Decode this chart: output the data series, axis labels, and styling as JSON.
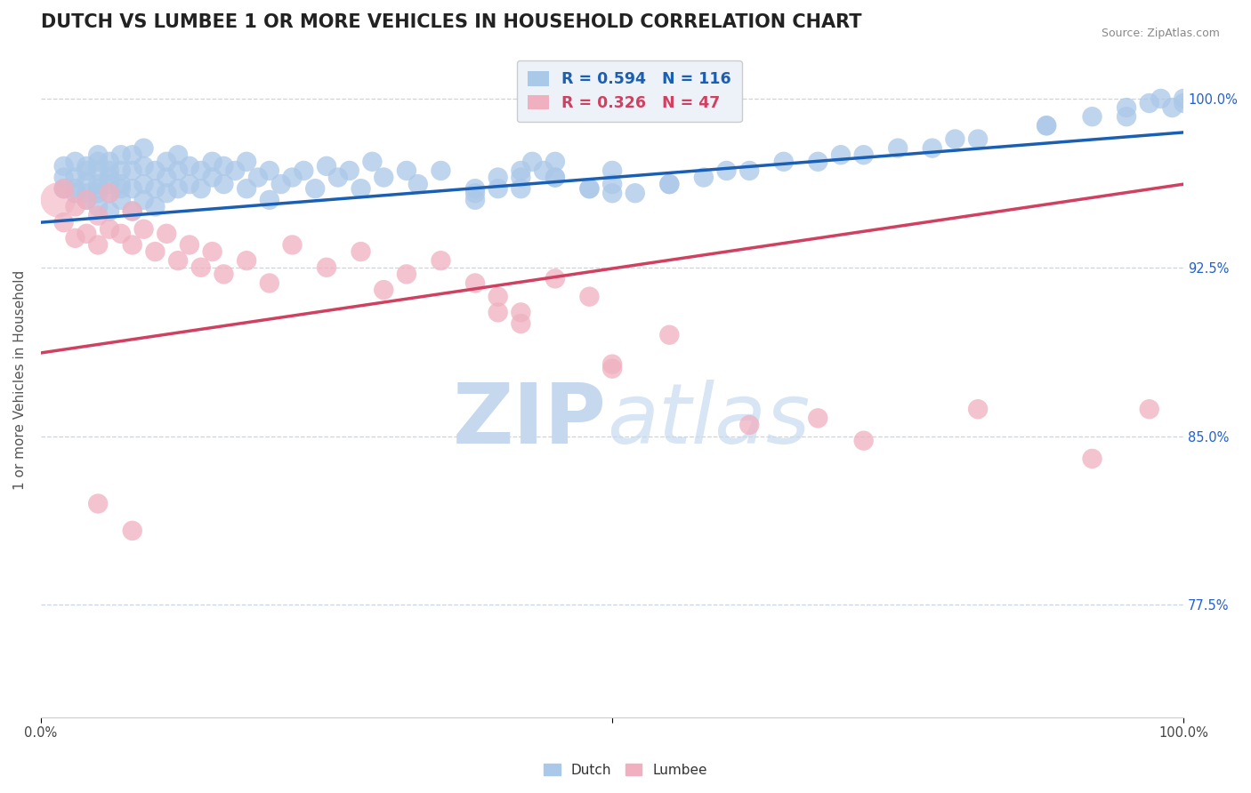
{
  "title": "DUTCH VS LUMBEE 1 OR MORE VEHICLES IN HOUSEHOLD CORRELATION CHART",
  "source_text": "Source: ZipAtlas.com",
  "ylabel": "1 or more Vehicles in Household",
  "xlim": [
    0.0,
    1.0
  ],
  "ylim": [
    0.725,
    1.025
  ],
  "ytick_labels_right": [
    "77.5%",
    "85.0%",
    "92.5%",
    "100.0%"
  ],
  "ytick_positions_right": [
    0.775,
    0.85,
    0.925,
    1.0
  ],
  "dutch_R": 0.594,
  "dutch_N": 116,
  "lumbee_R": 0.326,
  "lumbee_N": 47,
  "dutch_color": "#aac8e8",
  "dutch_line_color": "#1a5fb4",
  "lumbee_color": "#f0b0c0",
  "lumbee_line_color": "#d04060",
  "watermark_zip": "ZIP",
  "watermark_atlas": "atlas",
  "watermark_color": "#c5d8ee",
  "background_color": "#ffffff",
  "grid_color": "#c8d4e4",
  "title_fontsize": 15,
  "axis_label_fontsize": 11,
  "tick_fontsize": 10.5,
  "legend_fontsize": 12.5,
  "dutch_scatter_x": [
    0.02,
    0.02,
    0.02,
    0.03,
    0.03,
    0.03,
    0.03,
    0.04,
    0.04,
    0.04,
    0.04,
    0.04,
    0.05,
    0.05,
    0.05,
    0.05,
    0.05,
    0.05,
    0.05,
    0.06,
    0.06,
    0.06,
    0.06,
    0.06,
    0.06,
    0.07,
    0.07,
    0.07,
    0.07,
    0.07,
    0.08,
    0.08,
    0.08,
    0.08,
    0.09,
    0.09,
    0.09,
    0.09,
    0.1,
    0.1,
    0.1,
    0.11,
    0.11,
    0.11,
    0.12,
    0.12,
    0.12,
    0.13,
    0.13,
    0.14,
    0.14,
    0.15,
    0.15,
    0.16,
    0.16,
    0.17,
    0.18,
    0.18,
    0.19,
    0.2,
    0.2,
    0.21,
    0.22,
    0.23,
    0.24,
    0.25,
    0.26,
    0.27,
    0.28,
    0.29,
    0.3,
    0.32,
    0.33,
    0.35,
    0.38,
    0.4,
    0.42,
    0.45,
    0.48,
    0.5,
    0.38,
    0.42,
    0.45,
    0.5,
    0.55,
    0.62,
    0.68,
    0.72,
    0.78,
    0.82,
    0.88,
    0.92,
    0.95,
    0.97,
    0.98,
    0.99,
    1.0,
    1.0,
    0.95,
    0.88,
    0.8,
    0.75,
    0.7,
    0.65,
    0.6,
    0.58,
    0.55,
    0.52,
    0.5,
    0.48,
    0.45,
    0.44,
    0.43,
    0.42,
    0.4,
    0.38
  ],
  "dutch_scatter_y": [
    0.965,
    0.96,
    0.97,
    0.958,
    0.965,
    0.972,
    0.96,
    0.955,
    0.963,
    0.97,
    0.958,
    0.968,
    0.952,
    0.96,
    0.968,
    0.975,
    0.962,
    0.958,
    0.972,
    0.95,
    0.958,
    0.965,
    0.972,
    0.962,
    0.968,
    0.955,
    0.962,
    0.968,
    0.975,
    0.96,
    0.95,
    0.96,
    0.968,
    0.975,
    0.955,
    0.962,
    0.97,
    0.978,
    0.952,
    0.96,
    0.968,
    0.958,
    0.965,
    0.972,
    0.96,
    0.968,
    0.975,
    0.962,
    0.97,
    0.96,
    0.968,
    0.965,
    0.972,
    0.962,
    0.97,
    0.968,
    0.96,
    0.972,
    0.965,
    0.955,
    0.968,
    0.962,
    0.965,
    0.968,
    0.96,
    0.97,
    0.965,
    0.968,
    0.96,
    0.972,
    0.965,
    0.968,
    0.962,
    0.968,
    0.96,
    0.965,
    0.968,
    0.972,
    0.96,
    0.968,
    0.955,
    0.96,
    0.965,
    0.958,
    0.962,
    0.968,
    0.972,
    0.975,
    0.978,
    0.982,
    0.988,
    0.992,
    0.996,
    0.998,
    1.0,
    0.996,
    1.0,
    0.998,
    0.992,
    0.988,
    0.982,
    0.978,
    0.975,
    0.972,
    0.968,
    0.965,
    0.962,
    0.958,
    0.962,
    0.96,
    0.965,
    0.968,
    0.972,
    0.965,
    0.96,
    0.958
  ],
  "lumbee_scatter_x": [
    0.02,
    0.02,
    0.03,
    0.03,
    0.04,
    0.04,
    0.05,
    0.05,
    0.06,
    0.06,
    0.07,
    0.08,
    0.08,
    0.09,
    0.1,
    0.11,
    0.12,
    0.13,
    0.14,
    0.15,
    0.16,
    0.18,
    0.2,
    0.22,
    0.25,
    0.28,
    0.3,
    0.32,
    0.35,
    0.38,
    0.4,
    0.42,
    0.45,
    0.48,
    0.5,
    0.4,
    0.42,
    0.5,
    0.55,
    0.62,
    0.68,
    0.72,
    0.82,
    0.92,
    0.97,
    0.05,
    0.08
  ],
  "lumbee_scatter_y": [
    0.96,
    0.945,
    0.938,
    0.952,
    0.94,
    0.955,
    0.935,
    0.948,
    0.942,
    0.958,
    0.94,
    0.935,
    0.95,
    0.942,
    0.932,
    0.94,
    0.928,
    0.935,
    0.925,
    0.932,
    0.922,
    0.928,
    0.918,
    0.935,
    0.925,
    0.932,
    0.915,
    0.922,
    0.928,
    0.918,
    0.912,
    0.905,
    0.92,
    0.912,
    0.88,
    0.905,
    0.9,
    0.882,
    0.895,
    0.855,
    0.858,
    0.848,
    0.862,
    0.84,
    0.862,
    0.82,
    0.808
  ],
  "lumbee_large_x": [
    0.02
  ],
  "lumbee_large_y": [
    0.96
  ],
  "dutch_trend_x0": 0.0,
  "dutch_trend_y0": 0.945,
  "dutch_trend_x1": 1.0,
  "dutch_trend_y1": 0.985,
  "lumbee_trend_x0": 0.0,
  "lumbee_trend_y0": 0.887,
  "lumbee_trend_x1": 1.0,
  "lumbee_trend_y1": 0.962
}
